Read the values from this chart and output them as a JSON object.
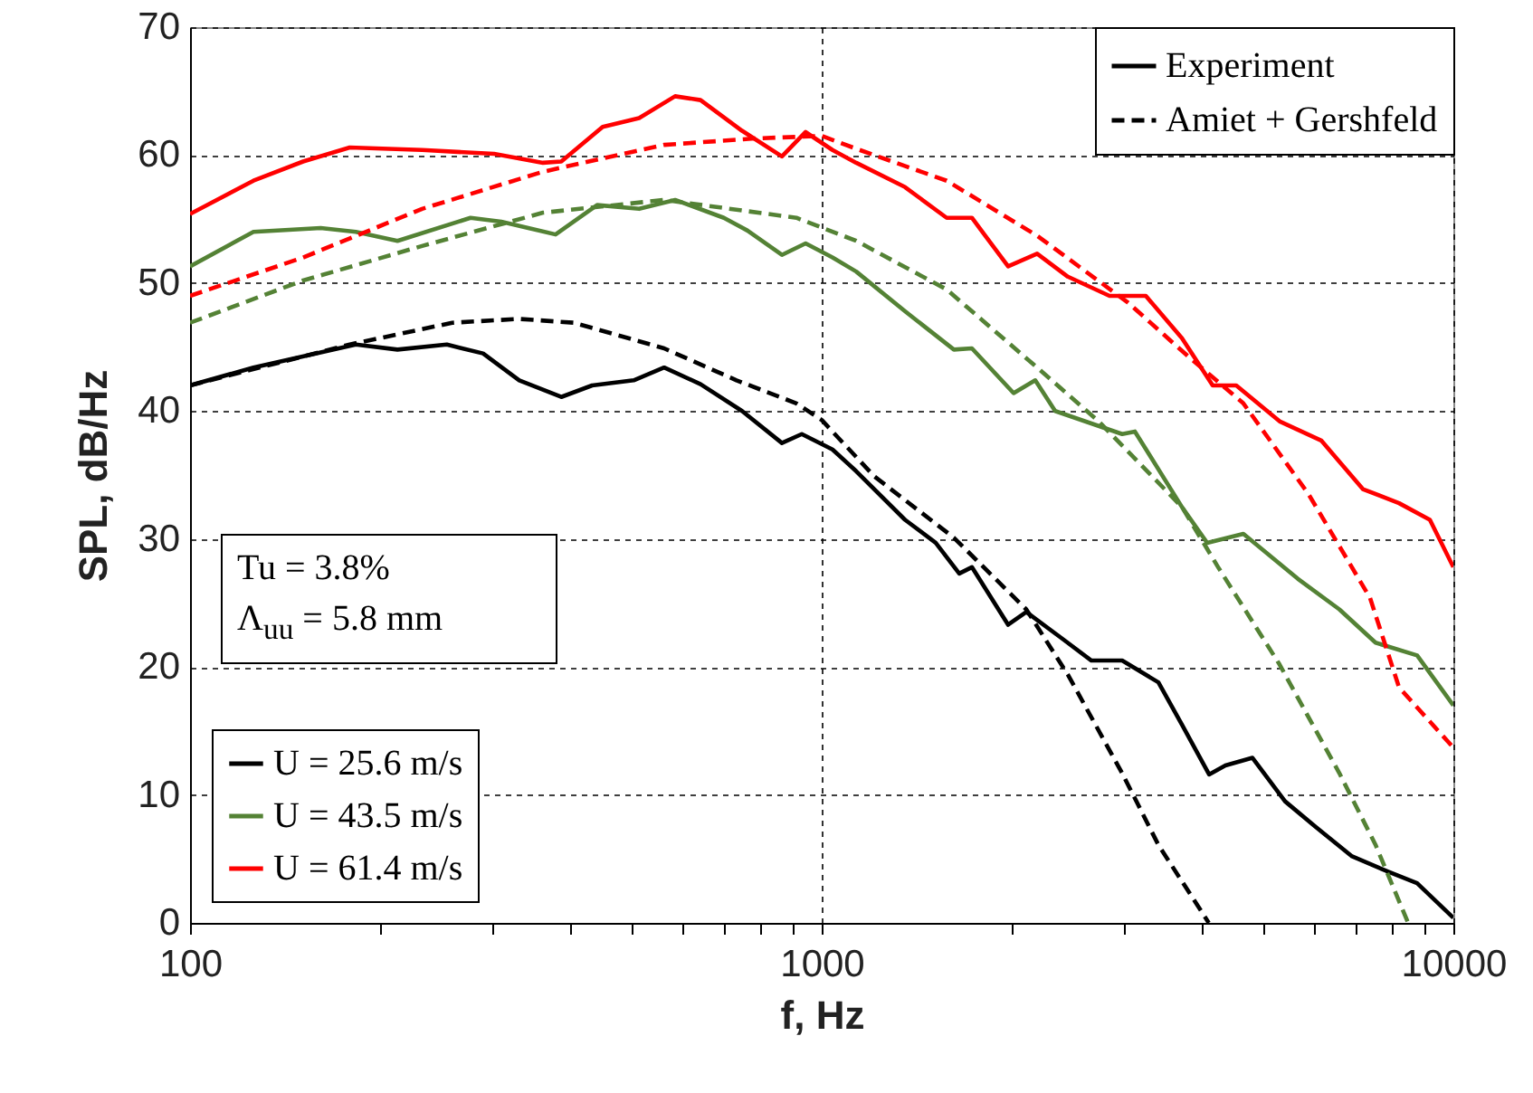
{
  "chart_data": {
    "type": "line",
    "xlabel": "f, Hz",
    "ylabel": "SPL, dB/Hz",
    "log": "x",
    "xlim": [
      100,
      10000
    ],
    "xticks": [
      100,
      {
        "value": 200,
        "label": null
      },
      {
        "value": 300,
        "label": null
      },
      {
        "value": 400,
        "label": null
      },
      {
        "value": 500,
        "label": null
      },
      {
        "value": 600,
        "label": null
      },
      {
        "value": 700,
        "label": null
      },
      {
        "value": 800,
        "label": null
      },
      {
        "value": 900,
        "label": null
      },
      1000,
      {
        "value": 2000,
        "label": null
      },
      {
        "value": 3000,
        "label": null
      },
      {
        "value": 4000,
        "label": null
      },
      {
        "value": 5000,
        "label": null
      },
      {
        "value": 6000,
        "label": null
      },
      {
        "value": 7000,
        "label": null
      },
      {
        "value": 8000,
        "label": null
      },
      {
        "value": 9000,
        "label": null
      },
      10000
    ],
    "ylim": [
      0,
      70
    ],
    "yticks": [
      0,
      10,
      20,
      30,
      40,
      50,
      60,
      70
    ],
    "grid": true,
    "legend": "bottom left",
    "annotations": [
      "Tu = 3.8%",
      "Λ$_{uu}$ = 5.8 mm",
      "Experiment",
      "Amiet + Gershfeld"
    ],
    "series": [
      {
        "name": "U = 25.6 m/s",
        "color": "#000000",
        "line_style": "solid",
        "x": [
          100,
          126,
          183,
          213,
          255,
          291,
          332,
          387,
          433,
          504,
          563,
          643,
          748,
          865,
          930,
          1040,
          1134,
          1355,
          1515,
          1651,
          1729,
          1973,
          2108,
          2405,
          2673,
          2990,
          3412,
          3718,
          4105,
          4356,
          4808,
          5414,
          6056,
          6912,
          7886,
          8763,
          10000
        ],
        "values": [
          42.0,
          43.4,
          45.2,
          44.8,
          45.2,
          44.5,
          42.4,
          41.1,
          42.0,
          42.4,
          43.4,
          42.1,
          40.0,
          37.5,
          38.2,
          37.0,
          35.3,
          31.5,
          29.7,
          27.3,
          27.8,
          23.3,
          24.3,
          22.2,
          20.5,
          20.5,
          18.8,
          15.5,
          11.6,
          12.3,
          12.9,
          9.5,
          7.5,
          5.2,
          4.0,
          3.1,
          0.4
        ]
      },
      {
        "name": "U = 43.5 m/s",
        "color": "#548235",
        "line_style": "solid",
        "x": [
          100,
          126,
          161,
          183,
          213,
          278,
          311,
          379,
          441,
          514,
          586,
          700,
          763,
          865,
          943,
          1040,
          1134,
          1355,
          1619,
          1729,
          2013,
          2178,
          2342,
          2990,
          3132,
          3718,
          4077,
          4651,
          5670,
          6600,
          7530,
          8763,
          10000
        ],
        "values": [
          51.3,
          54.0,
          54.3,
          54.0,
          53.3,
          55.1,
          54.8,
          53.8,
          56.1,
          55.8,
          56.5,
          55.1,
          54.1,
          52.2,
          53.1,
          52.0,
          50.9,
          47.8,
          44.8,
          44.9,
          41.4,
          42.4,
          40.0,
          38.2,
          38.4,
          32.5,
          29.7,
          30.4,
          26.9,
          24.5,
          21.9,
          20.9,
          17.0
        ]
      },
      {
        "name": "U = 61.4 m/s",
        "color": "#ff0000",
        "line_style": "solid",
        "x": [
          100,
          126,
          151,
          179,
          233,
          303,
          362,
          387,
          450,
          514,
          586,
          643,
          748,
          865,
          943,
          1040,
          1134,
          1355,
          1577,
          1729,
          1973,
          2193,
          2453,
          2855,
          3259,
          3718,
          4159,
          4532,
          5306,
          6177,
          7190,
          8204,
          9180,
          10000
        ],
        "values": [
          55.4,
          58.0,
          59.5,
          60.6,
          60.4,
          60.1,
          59.4,
          59.5,
          62.2,
          62.9,
          64.6,
          64.3,
          61.9,
          59.9,
          61.8,
          60.4,
          59.4,
          57.5,
          55.1,
          55.1,
          51.3,
          52.3,
          50.5,
          49.0,
          49.0,
          45.7,
          42.0,
          42.0,
          39.2,
          37.7,
          33.9,
          32.8,
          31.5,
          27.8
        ]
      },
      {
        "color": "#000000",
        "line_style": "dashed",
        "x": [
          100,
          179,
          260,
          332,
          405,
          563,
          733,
          912,
          1000,
          1211,
          1619,
          2108,
          2453,
          2990,
          3412,
          4100
        ],
        "values": [
          42.0,
          45.2,
          46.9,
          47.2,
          46.9,
          44.9,
          42.4,
          40.6,
          39.3,
          34.9,
          30.1,
          24.5,
          19.4,
          11.7,
          6.1,
          0
        ]
      },
      {
        "color": "#548235",
        "line_style": "dashed",
        "x": [
          100,
          151,
          233,
          362,
          563,
          912,
          1134,
          1577,
          2193,
          2744,
          3718,
          4242,
          5306,
          6600,
          7530,
          8480
        ],
        "values": [
          46.9,
          50.2,
          52.9,
          55.5,
          56.5,
          55.1,
          53.3,
          49.5,
          43.4,
          39.2,
          32.5,
          27.8,
          20.2,
          11.7,
          6.1,
          0
        ]
      },
      {
        "color": "#ff0000",
        "line_style": "dashed",
        "x": [
          100,
          151,
          233,
          362,
          563,
          783,
          1000,
          1134,
          1577,
          2193,
          3050,
          3817,
          4651,
          5899,
          7380,
          8204,
          10000
        ],
        "values": [
          49.0,
          52.0,
          55.8,
          58.7,
          60.8,
          61.3,
          61.5,
          60.5,
          58.0,
          53.7,
          48.5,
          44.2,
          40.6,
          33.5,
          25.4,
          18.4,
          13.7
        ]
      }
    ]
  }
}
